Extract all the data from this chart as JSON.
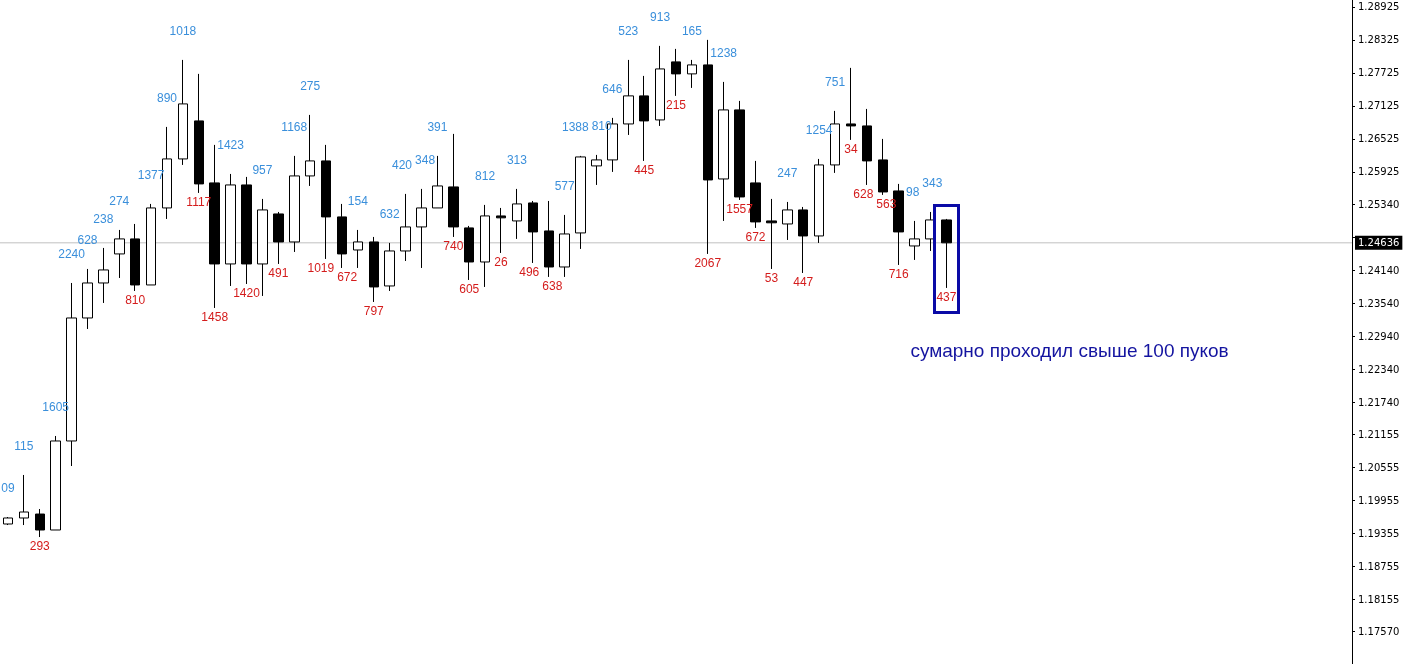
{
  "chart_data": {
    "type": "candlestick",
    "categories": [
      null,
      null,
      null,
      null,
      null,
      null,
      null,
      null,
      null,
      null,
      null,
      null,
      null,
      null,
      null,
      null,
      null,
      null,
      null,
      null,
      null,
      null,
      null,
      null,
      null,
      null,
      null,
      null,
      null,
      null,
      null,
      null,
      null,
      null,
      null,
      null,
      null,
      null,
      null,
      null,
      null,
      null,
      null,
      null,
      null,
      null,
      null,
      null,
      null,
      null,
      null,
      null,
      null,
      null,
      null,
      null,
      null,
      null,
      null,
      null,
      null,
      null,
      null,
      null,
      null,
      null,
      null,
      null,
      null,
      null,
      null,
      null,
      null,
      null,
      null,
      null,
      null,
      null,
      null,
      null,
      null,
      null,
      null,
      null,
      null
    ],
    "series": [
      {
        "color": "#000000",
        "ohlc": [
          [
            1.19525,
            1.19652,
            1.19506,
            1.19634
          ],
          [
            1.19634,
            1.20416,
            1.19506,
            1.19743
          ],
          [
            1.19706,
            1.19797,
            1.19288,
            1.19416
          ],
          [
            1.19416,
            1.21125,
            1.19416,
            1.21034
          ],
          [
            1.21034,
            1.23906,
            1.20579,
            1.2327
          ],
          [
            1.2327,
            1.24161,
            1.2307,
            1.23906
          ],
          [
            1.23906,
            1.24543,
            1.23543,
            1.24143
          ],
          [
            1.24434,
            1.2487,
            1.23997,
            1.24707
          ],
          [
            1.24707,
            1.24979,
            1.23761,
            1.2387
          ],
          [
            1.2387,
            1.25343,
            1.2387,
            1.2527
          ],
          [
            1.2527,
            1.26743,
            1.2507,
            1.26161
          ],
          [
            1.26161,
            1.27961,
            1.26052,
            1.27161
          ],
          [
            1.26852,
            1.27707,
            1.25543,
            1.25707
          ],
          [
            1.25725,
            1.26416,
            1.23452,
            1.24252
          ],
          [
            1.24252,
            1.25888,
            1.23852,
            1.25688
          ],
          [
            1.25688,
            1.25834,
            1.23888,
            1.24252
          ],
          [
            1.24252,
            1.25434,
            1.2367,
            1.25234
          ],
          [
            1.25161,
            1.25197,
            1.24252,
            1.24652
          ],
          [
            1.24652,
            1.26216,
            1.2447,
            1.25852
          ],
          [
            1.25852,
            1.26961,
            1.2567,
            1.26125
          ],
          [
            1.26125,
            1.26416,
            1.24343,
            1.25107
          ],
          [
            1.25107,
            1.25343,
            1.24179,
            1.24434
          ],
          [
            1.24506,
            1.2487,
            1.24179,
            1.24652
          ],
          [
            1.24652,
            1.24743,
            1.23561,
            1.23834
          ],
          [
            1.23852,
            1.24634,
            1.23761,
            1.24488
          ],
          [
            1.24488,
            1.25525,
            1.24306,
            1.24925
          ],
          [
            1.24925,
            1.25616,
            1.24179,
            1.2527
          ],
          [
            1.2527,
            1.26216,
            1.2527,
            1.2567
          ],
          [
            1.25652,
            1.26616,
            1.24743,
            1.24925
          ],
          [
            1.24907,
            1.24943,
            1.23961,
            1.24288
          ],
          [
            1.24288,
            1.25325,
            1.23834,
            1.25125
          ],
          [
            1.25125,
            1.2527,
            1.24452,
            1.2509
          ],
          [
            1.25034,
            1.25616,
            1.24707,
            1.25343
          ],
          [
            1.25361,
            1.25397,
            1.2427,
            1.24834
          ],
          [
            1.24852,
            1.25397,
            1.24016,
            1.24197
          ],
          [
            1.24197,
            1.25143,
            1.24016,
            1.24797
          ],
          [
            1.24816,
            1.26216,
            1.24525,
            1.26197
          ],
          [
            1.26034,
            1.26234,
            1.25688,
            1.26143
          ],
          [
            1.26143,
            1.26907,
            1.25925,
            1.26797
          ],
          [
            1.26797,
            1.27961,
            1.26597,
            1.27307
          ],
          [
            1.27307,
            1.2767,
            1.26125,
            1.26852
          ],
          [
            1.2687,
            1.28216,
            1.26761,
            1.27797
          ],
          [
            1.27925,
            1.28161,
            1.27307,
            1.27707
          ],
          [
            1.27707,
            1.27961,
            1.27452,
            1.2787
          ],
          [
            1.2787,
            1.28325,
            1.24434,
            1.25779
          ],
          [
            1.25797,
            1.27561,
            1.25034,
            1.27052
          ],
          [
            1.27052,
            1.27216,
            1.25416,
            1.2547
          ],
          [
            1.25725,
            1.26125,
            1.24907,
            1.25016
          ],
          [
            1.25034,
            1.25434,
            1.24161,
            1.25
          ],
          [
            1.24979,
            1.25379,
            1.24688,
            1.25234
          ],
          [
            1.25234,
            1.25288,
            1.24088,
            1.24761
          ],
          [
            1.24761,
            1.26161,
            1.24634,
            1.26052
          ],
          [
            1.26052,
            1.27034,
            1.25907,
            1.26797
          ],
          [
            1.26797,
            1.27816,
            1.26507,
            1.26761
          ],
          [
            1.26761,
            1.2707,
            1.25688,
            1.26125
          ],
          [
            1.26143,
            1.26525,
            1.25507,
            1.25561
          ],
          [
            1.25579,
            1.25707,
            1.24234,
            1.24834
          ],
          [
            1.24579,
            1.25034,
            1.24325,
            1.24707
          ],
          [
            1.24707,
            1.25197,
            1.24488,
            1.25052
          ],
          [
            1.25052,
            1.2507,
            1.23816,
            1.24636
          ],
          null,
          null,
          null,
          null,
          null,
          null,
          null,
          null,
          null,
          null,
          null,
          null,
          null,
          null,
          null,
          null,
          null,
          null,
          null,
          null,
          null,
          null,
          null,
          null,
          null
        ],
        "value_labels": [
          "09",
          "115",
          "293",
          "1605",
          "2240",
          "628",
          "238",
          "274",
          "810",
          "1377",
          "890",
          "1018",
          "1117",
          "1458",
          "1423",
          "1420",
          "957",
          "491",
          "1168",
          "275",
          "1019",
          "672",
          "154",
          "797",
          "632",
          "420",
          "348",
          "391",
          "740",
          "605",
          "812",
          "26",
          "313",
          "496",
          "638",
          "577",
          "1388",
          "810",
          "646",
          "523",
          "445",
          "913",
          "215",
          "165",
          "2067",
          "1238",
          "1557",
          "672",
          "53",
          "247",
          "447",
          "1254",
          "751",
          "34",
          "628",
          "563",
          "716",
          "98",
          "343",
          "437",
          null,
          null,
          null,
          null,
          null,
          null,
          null,
          null,
          null,
          null,
          null,
          null,
          null,
          null,
          null,
          null,
          null,
          null,
          null,
          null,
          null,
          null,
          null,
          null,
          null
        ]
      }
    ],
    "ylim": [
      1.1698,
      1.2905
    ],
    "yticks": [
      {
        "value": 1.28925,
        "label": "1.28925"
      },
      {
        "value": 1.28325,
        "label": "1.28325"
      },
      {
        "value": 1.27725,
        "label": "1.27725"
      },
      {
        "value": 1.27125,
        "label": "1.27125"
      },
      {
        "value": 1.26525,
        "label": "1.26525"
      },
      {
        "value": 1.25925,
        "label": "1.25925"
      },
      {
        "value": 1.2534,
        "label": "1.25340"
      },
      {
        "value": 1.2474,
        "label": null
      },
      {
        "value": 1.2414,
        "label": "1.24140"
      },
      {
        "value": 1.2354,
        "label": "1.23540"
      },
      {
        "value": 1.2294,
        "label": "1.22940"
      },
      {
        "value": 1.2234,
        "label": "1.22340"
      },
      {
        "value": 1.2174,
        "label": "1.21740"
      },
      {
        "value": 1.21155,
        "label": "1.21155"
      },
      {
        "value": 1.20555,
        "label": "1.20555"
      },
      {
        "value": 1.19955,
        "label": "1.19955"
      },
      {
        "value": 1.19355,
        "label": "1.19355"
      },
      {
        "value": 1.18755,
        "label": "1.18755"
      },
      {
        "value": 1.18155,
        "label": "1.18155"
      },
      {
        "value": 1.1757,
        "label": "1.17570"
      }
    ],
    "tick_labels": "y",
    "ref_lines": [
      {
        "axis": "y",
        "value": 1.24636,
        "label": "1.24636",
        "color": "#c0c0c0",
        "line_style": "solid"
      }
    ],
    "annotations": [
      "сумарно проходил свыше 100 пуков"
    ]
  }
}
